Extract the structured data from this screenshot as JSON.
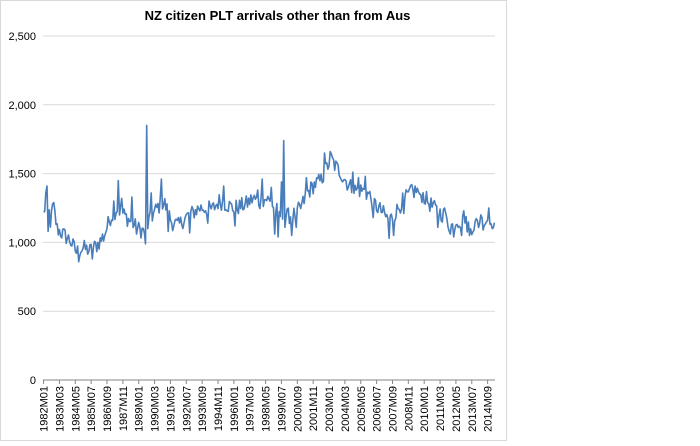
{
  "chart_data": {
    "type": "line",
    "title": "NZ citizen PLT arrivals other than from Aus",
    "xlabel": "",
    "ylabel": "",
    "ylim": [
      0,
      2500
    ],
    "yticks": [
      0,
      500,
      1000,
      1500,
      2000,
      2500
    ],
    "ytick_labels": [
      "0",
      "500",
      "1,000",
      "1,500",
      "2,000",
      "2,500"
    ],
    "grid": true,
    "series_color": "#4a7ebb",
    "x_tick_labels": [
      "1982M01",
      "1983M03",
      "1984M05",
      "1985M07",
      "1986M09",
      "1987M11",
      "1989M01",
      "1990M03",
      "1991M05",
      "1992M07",
      "1993M09",
      "1994M11",
      "1996M01",
      "1997M03",
      "1998M05",
      "1999M07",
      "2000M09",
      "2001M11",
      "2003M01",
      "2004M03",
      "2005M05",
      "2006M07",
      "2007M09",
      "2008M11",
      "2010M01",
      "2011M03",
      "2012M05",
      "2013M07",
      "2014M09"
    ],
    "series": [
      {
        "name": "NZ citizen PLT arrivals other than from Aus",
        "start": "1982M01",
        "frequency": "monthly",
        "anchor_points": [
          [
            "1982M01",
            1200
          ],
          [
            "1982M04",
            1350
          ],
          [
            "1982M07",
            1150
          ],
          [
            "1982M10",
            1250
          ],
          [
            "1983M01",
            1100
          ],
          [
            "1983M06",
            1060
          ],
          [
            "1983M12",
            1020
          ],
          [
            "1984M06",
            930
          ],
          [
            "1984M12",
            960
          ],
          [
            "1985M06",
            940
          ],
          [
            "1985M12",
            980
          ],
          [
            "1986M06",
            1040
          ],
          [
            "1986M12",
            1180
          ],
          [
            "1987M06",
            1250
          ],
          [
            "1987M12",
            1200
          ],
          [
            "1988M06",
            1150
          ],
          [
            "1988M12",
            1100
          ],
          [
            "1989M06",
            1080
          ],
          [
            "1989M12",
            1180
          ],
          [
            "1990M06",
            1260
          ],
          [
            "1990M12",
            1280
          ],
          [
            "1991M06",
            1150
          ],
          [
            "1991M12",
            1120
          ],
          [
            "1992M06",
            1180
          ],
          [
            "1992M12",
            1210
          ],
          [
            "1993M06",
            1250
          ],
          [
            "1993M12",
            1250
          ],
          [
            "1994M06",
            1240
          ],
          [
            "1994M12",
            1300
          ],
          [
            "1995M06",
            1280
          ],
          [
            "1995M12",
            1250
          ],
          [
            "1996M06",
            1260
          ],
          [
            "1996M12",
            1280
          ],
          [
            "1997M06",
            1320
          ],
          [
            "1997M12",
            1290
          ],
          [
            "1998M06",
            1320
          ],
          [
            "1998M12",
            1260
          ],
          [
            "1999M06",
            1200
          ],
          [
            "1999M12",
            1190
          ],
          [
            "2000M06",
            1200
          ],
          [
            "2000M12",
            1250
          ],
          [
            "2001M06",
            1360
          ],
          [
            "2001M12",
            1420
          ],
          [
            "2002M06",
            1450
          ],
          [
            "2002M12",
            1560
          ],
          [
            "2003M03",
            1610
          ],
          [
            "2003M06",
            1560
          ],
          [
            "2003M12",
            1500
          ],
          [
            "2004M06",
            1420
          ],
          [
            "2004M12",
            1380
          ],
          [
            "2005M06",
            1380
          ],
          [
            "2005M12",
            1350
          ],
          [
            "2006M06",
            1270
          ],
          [
            "2006M12",
            1220
          ],
          [
            "2007M06",
            1160
          ],
          [
            "2007M12",
            1220
          ],
          [
            "2008M06",
            1300
          ],
          [
            "2008M12",
            1350
          ],
          [
            "2009M06",
            1380
          ],
          [
            "2009M12",
            1340
          ],
          [
            "2010M06",
            1280
          ],
          [
            "2010M12",
            1230
          ],
          [
            "2011M06",
            1200
          ],
          [
            "2011M12",
            1110
          ],
          [
            "2012M06",
            1160
          ],
          [
            "2012M12",
            1150
          ],
          [
            "2013M06",
            1110
          ],
          [
            "2013M12",
            1140
          ],
          [
            "2014M06",
            1150
          ],
          [
            "2014M12",
            1190
          ],
          [
            "2015M03",
            1140
          ]
        ],
        "spikes": [
          [
            "1982M03",
            1360
          ],
          [
            "1982M05",
            1080
          ],
          [
            "1982M09",
            1280
          ],
          [
            "1984M08",
            860
          ],
          [
            "1985M08",
            880
          ],
          [
            "1986M05",
            1060
          ],
          [
            "1987M03",
            1300
          ],
          [
            "1987M07",
            1450
          ],
          [
            "1987M10",
            1320
          ],
          [
            "1988M07",
            1330
          ],
          [
            "1988M11",
            1060
          ],
          [
            "1989M07",
            990
          ],
          [
            "1989M08",
            1850
          ],
          [
            "1989M09",
            1100
          ],
          [
            "1989M12",
            1360
          ],
          [
            "1990M09",
            1460
          ],
          [
            "1991M03",
            1080
          ],
          [
            "1992M10",
            1070
          ],
          [
            "1994M02",
            1140
          ],
          [
            "1995M04",
            1410
          ],
          [
            "1996M02",
            1120
          ],
          [
            "1997M10",
            1380
          ],
          [
            "1998M02",
            1460
          ],
          [
            "1998M10",
            1400
          ],
          [
            "1999M01",
            1060
          ],
          [
            "1999M04",
            1040
          ],
          [
            "1999M07",
            1440
          ],
          [
            "1999M09",
            1740
          ],
          [
            "1999M10",
            1110
          ],
          [
            "2000M04",
            1050
          ],
          [
            "2000M08",
            1110
          ],
          [
            "2001M05",
            1470
          ],
          [
            "2002M09",
            1650
          ],
          [
            "2003M02",
            1660
          ],
          [
            "2004M01",
            1440
          ],
          [
            "2004M10",
            1510
          ],
          [
            "2005M03",
            1470
          ],
          [
            "2005M09",
            1480
          ],
          [
            "2006M04",
            1180
          ],
          [
            "2007M06",
            1030
          ],
          [
            "2007M10",
            1050
          ],
          [
            "2008M07",
            1210
          ],
          [
            "2009M02",
            1420
          ],
          [
            "2009M09",
            1350
          ],
          [
            "2010M09",
            1290
          ],
          [
            "2011M01",
            1110
          ],
          [
            "2011M07",
            1250
          ],
          [
            "2012M03",
            1040
          ],
          [
            "2012M10",
            1050
          ],
          [
            "2012M12",
            1230
          ],
          [
            "2013M05",
            1050
          ],
          [
            "2014M03",
            1200
          ],
          [
            "2014M10",
            1250
          ],
          [
            "2015M01",
            1100
          ]
        ]
      }
    ]
  }
}
